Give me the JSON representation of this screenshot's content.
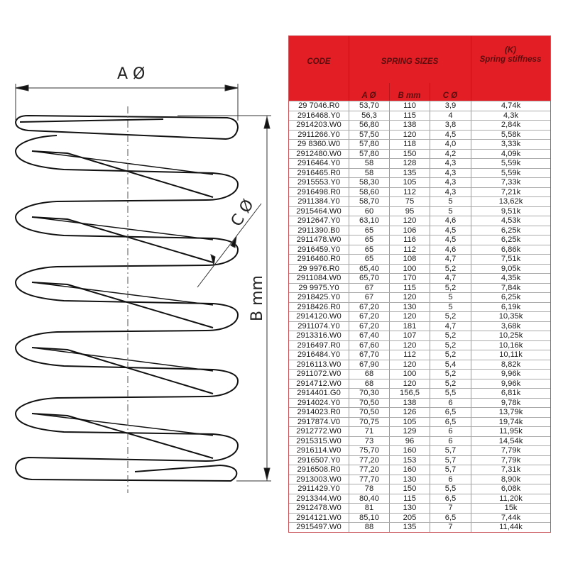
{
  "drawing": {
    "label_a": "A Ø",
    "label_b": "B mm",
    "label_c": "C Ø"
  },
  "table": {
    "header": {
      "code": "CODE",
      "spring_sizes": "SPRING SIZES",
      "stiffness_k": "(K)",
      "stiffness": "Spring stiffness",
      "a": "A Ø",
      "b": "B mm",
      "c": "C Ø"
    },
    "colors": {
      "header_bg": "#e31e24",
      "header_text": "#5c0d0f",
      "border": "#c9545a"
    },
    "rows": [
      [
        "29 7046.R0",
        "53,70",
        "110",
        "3,9",
        "4,74k"
      ],
      [
        "2916468.Y0",
        "56,3",
        "115",
        "4",
        "4,3k"
      ],
      [
        "2914203.W0",
        "56,80",
        "138",
        "3,8",
        "2,84k"
      ],
      [
        "2911266.Y0",
        "57,50",
        "120",
        "4,5",
        "5,58k"
      ],
      [
        "29 8360.W0",
        "57,80",
        "118",
        "4,0",
        "3,33k"
      ],
      [
        "2912480.W0",
        "57,80",
        "150",
        "4,2",
        "4,09k"
      ],
      [
        "2916464.Y0",
        "58",
        "128",
        "4,3",
        "5,59k"
      ],
      [
        "2916465.R0",
        "58",
        "135",
        "4,3",
        "5,59k"
      ],
      [
        "2915553.Y0",
        "58,30",
        "105",
        "4,3",
        "7,33k"
      ],
      [
        "2916498.R0",
        "58,60",
        "112",
        "4,3",
        "7,21k"
      ],
      [
        "2911384.Y0",
        "58,70",
        "75",
        "5",
        "13,62k"
      ],
      [
        "2915464.W0",
        "60",
        "95",
        "5",
        "9,51k"
      ],
      [
        "2912647.Y0",
        "63,10",
        "120",
        "4,6",
        "4,53k"
      ],
      [
        "2911390.B0",
        "65",
        "106",
        "4,5",
        "6,25k"
      ],
      [
        "2911478.W0",
        "65",
        "116",
        "4,5",
        "6,25k"
      ],
      [
        "2916459.Y0",
        "65",
        "112",
        "4,6",
        "6,86k"
      ],
      [
        "2916460.R0",
        "65",
        "108",
        "4,7",
        "7,51k"
      ],
      [
        "29 9976.R0",
        "65,40",
        "100",
        "5,2",
        "9,05k"
      ],
      [
        "2911084.W0",
        "65,70",
        "170",
        "4,7",
        "4,35k"
      ],
      [
        "29 9975.Y0",
        "67",
        "115",
        "5,2",
        "7,84k"
      ],
      [
        "2918425.Y0",
        "67",
        "120",
        "5",
        "6,25k"
      ],
      [
        "2918426.R0",
        "67,20",
        "130",
        "5",
        "6,19k"
      ],
      [
        "2914120.W0",
        "67,20",
        "120",
        "5,2",
        "10,35k"
      ],
      [
        "2911074.Y0",
        "67,20",
        "181",
        "4,7",
        "3,68k"
      ],
      [
        "2913316.W0",
        "67,40",
        "107",
        "5,2",
        "10,25k"
      ],
      [
        "2916497.R0",
        "67,60",
        "120",
        "5,2",
        "10,16k"
      ],
      [
        "2916484.Y0",
        "67,70",
        "112",
        "5,2",
        "10,11k"
      ],
      [
        "2916113.W0",
        "67,90",
        "120",
        "5,4",
        "8,82k"
      ],
      [
        "2911072.W0",
        "68",
        "100",
        "5,2",
        "9,96k"
      ],
      [
        "2914712.W0",
        "68",
        "120",
        "5,2",
        "9,96k"
      ],
      [
        "2914401.G0",
        "70,30",
        "156,5",
        "5,5",
        "6,81k"
      ],
      [
        "2914024.Y0",
        "70,50",
        "138",
        "6",
        "9,78k"
      ],
      [
        "2914023.R0",
        "70,50",
        "126",
        "6,5",
        "13,79k"
      ],
      [
        "2917874.V0",
        "70,75",
        "105",
        "6,5",
        "19,74k"
      ],
      [
        "2912772.W0",
        "71",
        "129",
        "6",
        "11,95k"
      ],
      [
        "2915315.W0",
        "73",
        "96",
        "6",
        "14,54k"
      ],
      [
        "2916114.W0",
        "75,70",
        "160",
        "5,7",
        "7,79k"
      ],
      [
        "2916507.Y0",
        "77,20",
        "153",
        "5,7",
        "7,79k"
      ],
      [
        "2916508.R0",
        "77,20",
        "160",
        "5,7",
        "7,31k"
      ],
      [
        "2913003.W0",
        "77,70",
        "130",
        "6",
        "8,90k"
      ],
      [
        "2911429.Y0",
        "78",
        "150",
        "5,5",
        "6,08k"
      ],
      [
        "2913344.W0",
        "80,40",
        "115",
        "6,5",
        "11,20k"
      ],
      [
        "2912478.W0",
        "81",
        "130",
        "7",
        "15k"
      ],
      [
        "2914121.W0",
        "85,10",
        "205",
        "6,5",
        "7,44k"
      ],
      [
        "2915497.W0",
        "88",
        "135",
        "7",
        "11,44k"
      ]
    ]
  }
}
